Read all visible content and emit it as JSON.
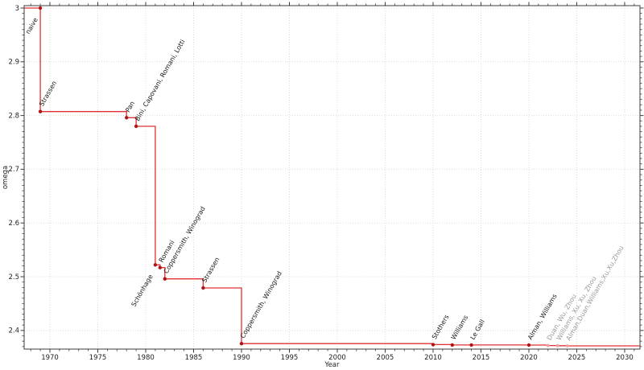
{
  "figure": {
    "title": "",
    "xlabel": "Year",
    "ylabel": "omega"
  },
  "chart_data": {
    "type": "line",
    "style": "step-pre",
    "title": "",
    "xlabel": "Year",
    "ylabel": "omega",
    "xlim": [
      1967.31,
      2031.6
    ],
    "ylim": [
      2.3653,
      3.0045
    ],
    "x_ticks": [
      1970,
      1975,
      1980,
      1985,
      1990,
      1995,
      2000,
      2005,
      2010,
      2015,
      2020,
      2025,
      2030
    ],
    "x_tick_labels": [
      "1970",
      "1975",
      "1980",
      "1985",
      "1990",
      "1995",
      "2000",
      "2005",
      "2010",
      "2015",
      "2020",
      "2025",
      "2030"
    ],
    "x_minor_step": 1,
    "y_ticks": [
      2.4,
      2.5,
      2.6,
      2.7,
      2.8,
      2.9,
      3.0
    ],
    "y_tick_labels": [
      "2.4",
      "2.5",
      "2.6",
      "2.7",
      "2.8",
      "2.9",
      "3"
    ],
    "y_minor_step": 0.01,
    "grid": true,
    "legend": false,
    "colors": {
      "line": "#e03030",
      "marker": "#b01515",
      "recent_marker": "#f1a2a2",
      "label": "#1a1a1a",
      "recent_label": "#999999",
      "grid": "#dcdcdc",
      "spine": "#3c3c3c",
      "tick_label": "#222222"
    },
    "points": [
      {
        "year": 1969,
        "omega": 3.0,
        "label": "naive",
        "label_side": "below",
        "recent": false
      },
      {
        "year": 1969,
        "omega": 2.8074,
        "label": "Strassen",
        "label_side": "above",
        "recent": false
      },
      {
        "year": 1978,
        "omega": 2.796,
        "label": "Pan",
        "label_side": "above",
        "recent": false
      },
      {
        "year": 1979,
        "omega": 2.78,
        "label": "Bini, Capovani, Romani, Lotti",
        "label_side": "above",
        "recent": false
      },
      {
        "year": 1981,
        "omega": 2.522,
        "label": "Schönhage",
        "label_side": "below",
        "recent": false
      },
      {
        "year": 1981.5,
        "omega": 2.517,
        "label": "Romani",
        "label_side": "above",
        "recent": false
      },
      {
        "year": 1982,
        "omega": 2.496,
        "label": "Coppersmith, Winograd",
        "label_side": "above",
        "recent": false
      },
      {
        "year": 1986,
        "omega": 2.479,
        "label": "Strassen",
        "label_side": "above",
        "recent": false
      },
      {
        "year": 1990,
        "omega": 2.3755,
        "label": "Coppersmith, Winograd",
        "label_side": "above",
        "recent": false
      },
      {
        "year": 2010,
        "omega": 2.3737,
        "label": "Stothers",
        "label_side": "above",
        "recent": false
      },
      {
        "year": 2012,
        "omega": 2.3729,
        "label": "Williams",
        "label_side": "above",
        "recent": false
      },
      {
        "year": 2014,
        "omega": 2.3728639,
        "label": "Le Gall",
        "label_side": "above",
        "recent": false
      },
      {
        "year": 2020,
        "omega": 2.3728596,
        "label": "Alman, Williams",
        "label_side": "above",
        "recent": false
      },
      {
        "year": 2022,
        "omega": 2.371866,
        "label": "Duan, Wu, Zhou",
        "label_side": "above",
        "recent": true
      },
      {
        "year": 2023,
        "omega": 2.371552,
        "label": "Williams, Xu, Xu, Zhou",
        "label_side": "above",
        "recent": true
      },
      {
        "year": 2024,
        "omega": 2.371339,
        "label": "Alman,Duan,Williams,Xu,Xu,Zhou",
        "label_side": "above",
        "recent": true
      }
    ]
  }
}
